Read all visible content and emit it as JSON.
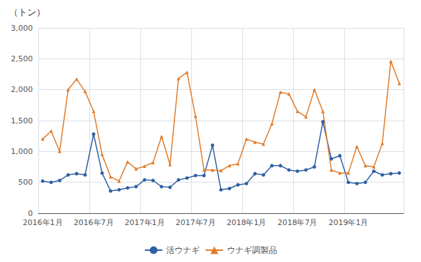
{
  "chart_data": {
    "type": "line",
    "title": "（トン）",
    "categories": [
      "2016年1月",
      null,
      null,
      null,
      null,
      null,
      "2016年7月",
      null,
      null,
      null,
      null,
      null,
      "2017年1月",
      null,
      null,
      null,
      null,
      null,
      "2017年7月",
      null,
      null,
      null,
      null,
      null,
      "2018年1月",
      null,
      null,
      null,
      null,
      null,
      "2018年7月",
      null,
      null,
      null,
      null,
      null,
      "2019年1月",
      null,
      null,
      null,
      null,
      null,
      null
    ],
    "series": [
      {
        "name": "活ウナギ",
        "color": "#2e5fa3",
        "marker": "circle",
        "values": [
          520,
          500,
          530,
          620,
          640,
          620,
          1280,
          650,
          360,
          380,
          410,
          430,
          540,
          530,
          430,
          420,
          540,
          570,
          610,
          610,
          1100,
          380,
          400,
          460,
          480,
          640,
          620,
          770,
          770,
          700,
          680,
          700,
          750,
          1480,
          880,
          930,
          500,
          480,
          500,
          680,
          620,
          640,
          650
        ]
      },
      {
        "name": "ウナギ調製品",
        "color": "#e07b2a",
        "marker": "triangle",
        "values": [
          1200,
          1330,
          1000,
          2000,
          2170,
          1970,
          1650,
          950,
          590,
          520,
          830,
          720,
          760,
          820,
          1240,
          790,
          2180,
          2280,
          1570,
          700,
          700,
          690,
          770,
          800,
          1200,
          1150,
          1120,
          1450,
          1960,
          1930,
          1650,
          1560,
          2000,
          1650,
          700,
          650,
          650,
          1080,
          770,
          750,
          1130,
          2460,
          2100
        ]
      }
    ],
    "ylim": [
      0,
      3000
    ],
    "yticks": [
      0,
      500,
      {
        "value": 1000,
        "label": "1,000"
      },
      {
        "value": 1500,
        "label": "1,500"
      },
      {
        "value": 2000,
        "label": "2,000"
      },
      {
        "value": 2500,
        "label": "2,500"
      },
      {
        "value": 3000,
        "label": "3,000"
      }
    ],
    "grid": true,
    "legend": "bottom"
  }
}
